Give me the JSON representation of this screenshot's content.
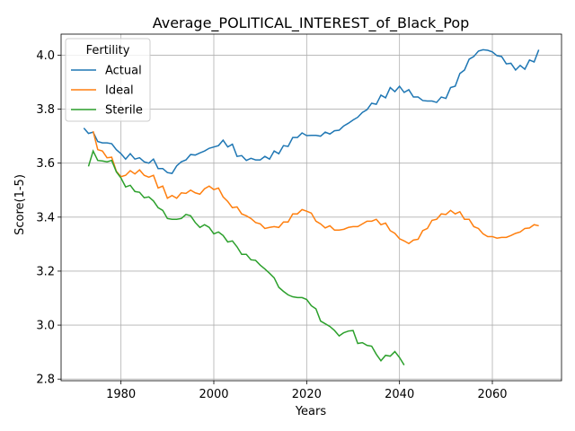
{
  "chart_data": {
    "type": "line",
    "title": "Average_POLITICAL_INTEREST_of_Black_Pop",
    "x_label": "Years",
    "y_label": "Score(1-5)",
    "legend_title": "Fertility",
    "legend": "upper left",
    "grid": true,
    "xlim": [
      1967.1,
      2074.9
    ],
    "xticks": [
      1980,
      2000,
      2020,
      2040,
      2060
    ],
    "ylim": [
      2.794,
      4.078
    ],
    "yticks": [
      2.8,
      {
        "value": 3.0,
        "label": "3.0"
      },
      3.2,
      3.4,
      3.6,
      3.8,
      {
        "value": 4.0,
        "label": "4.0"
      }
    ],
    "x": [
      1972,
      1973,
      1974,
      1975,
      1976,
      1977,
      1978,
      1979,
      1980,
      1981,
      1982,
      1983,
      1984,
      1985,
      1986,
      1987,
      1988,
      1989,
      1990,
      1991,
      1992,
      1993,
      1994,
      1995,
      1996,
      1997,
      1998,
      1999,
      2000,
      2001,
      2002,
      2003,
      2004,
      2005,
      2006,
      2007,
      2008,
      2009,
      2010,
      2011,
      2012,
      2013,
      2014,
      2015,
      2016,
      2017,
      2018,
      2019,
      2020,
      2021,
      2022,
      2023,
      2024,
      2025,
      2026,
      2027,
      2028,
      2029,
      2030,
      2031,
      2032,
      2033,
      2034,
      2035,
      2036,
      2037,
      2038,
      2039,
      2040,
      2041,
      2042,
      2043,
      2044,
      2045,
      2046,
      2047,
      2048,
      2049,
      2050,
      2051,
      2052,
      2053,
      2054,
      2055,
      2056,
      2057,
      2058,
      2059,
      2060,
      2061,
      2062,
      2063,
      2064,
      2065,
      2066,
      2067,
      2068,
      2069,
      2070
    ],
    "series": [
      {
        "name": "Actual",
        "color": "#1f77b4",
        "values": [
          3.73,
          3.71,
          3.715,
          3.68,
          3.675,
          3.675,
          3.672,
          3.65,
          3.635,
          3.615,
          3.635,
          3.615,
          3.62,
          3.605,
          3.6,
          3.615,
          3.58,
          3.58,
          3.565,
          3.562,
          3.59,
          3.605,
          3.612,
          3.632,
          3.63,
          3.638,
          3.645,
          3.655,
          3.66,
          3.665,
          3.685,
          3.66,
          3.67,
          3.625,
          3.628,
          3.61,
          3.618,
          3.612,
          3.612,
          3.625,
          3.615,
          3.645,
          3.635,
          3.665,
          3.662,
          3.695,
          3.695,
          3.712,
          3.702,
          3.703,
          3.703,
          3.7,
          3.715,
          3.708,
          3.72,
          3.722,
          3.738,
          3.748,
          3.76,
          3.77,
          3.788,
          3.798,
          3.822,
          3.818,
          3.852,
          3.842,
          3.88,
          3.865,
          3.885,
          3.862,
          3.872,
          3.845,
          3.845,
          3.832,
          3.83,
          3.83,
          3.825,
          3.845,
          3.84,
          3.88,
          3.885,
          3.932,
          3.945,
          3.985,
          3.995,
          4.015,
          4.02,
          4.018,
          4.012,
          3.998,
          3.995,
          3.968,
          3.97,
          3.945,
          3.962,
          3.948,
          3.982,
          3.975,
          4.02
        ]
      },
      {
        "name": "Ideal",
        "color": "#ff7f0e",
        "values": [
          null,
          null,
          3.718,
          3.65,
          3.645,
          3.62,
          3.622,
          3.57,
          3.55,
          3.555,
          3.572,
          3.56,
          3.575,
          3.555,
          3.548,
          3.555,
          3.508,
          3.515,
          3.47,
          3.48,
          3.47,
          3.49,
          3.488,
          3.5,
          3.49,
          3.485,
          3.505,
          3.515,
          3.502,
          3.508,
          3.475,
          3.458,
          3.435,
          3.438,
          3.412,
          3.405,
          3.395,
          3.38,
          3.375,
          3.358,
          3.362,
          3.365,
          3.362,
          3.382,
          3.382,
          3.412,
          3.412,
          3.428,
          3.422,
          3.415,
          3.385,
          3.375,
          3.36,
          3.368,
          3.352,
          3.352,
          3.355,
          3.362,
          3.365,
          3.365,
          3.375,
          3.385,
          3.385,
          3.392,
          3.372,
          3.378,
          3.35,
          3.34,
          3.32,
          3.312,
          3.302,
          3.315,
          3.318,
          3.35,
          3.358,
          3.388,
          3.392,
          3.412,
          3.41,
          3.425,
          3.412,
          3.42,
          3.392,
          3.392,
          3.365,
          3.358,
          3.338,
          3.328,
          3.328,
          3.322,
          3.325,
          3.325,
          3.332,
          3.34,
          3.345,
          3.358,
          3.36,
          3.372,
          3.368
        ]
      },
      {
        "name": "Sterile",
        "color": "#2ca02c",
        "values": [
          null,
          3.588,
          3.645,
          3.61,
          3.608,
          3.605,
          3.61,
          3.568,
          3.545,
          3.512,
          3.518,
          3.495,
          3.492,
          3.472,
          3.475,
          3.46,
          3.435,
          3.425,
          3.395,
          3.392,
          3.392,
          3.395,
          3.41,
          3.405,
          3.38,
          3.362,
          3.372,
          3.362,
          3.338,
          3.345,
          3.332,
          3.308,
          3.312,
          3.29,
          3.262,
          3.262,
          3.242,
          3.24,
          3.222,
          3.208,
          3.192,
          3.175,
          3.14,
          3.125,
          3.112,
          3.105,
          3.102,
          3.102,
          3.095,
          3.072,
          3.06,
          3.015,
          3.005,
          2.995,
          2.98,
          2.96,
          2.972,
          2.978,
          2.98,
          2.932,
          2.935,
          2.925,
          2.922,
          2.892,
          2.868,
          2.888,
          2.885,
          2.902,
          2.88,
          2.852,
          null,
          null,
          null,
          null,
          null,
          null,
          null,
          null,
          null,
          null,
          null,
          null,
          null,
          null,
          null,
          null,
          null,
          null,
          null,
          null,
          null,
          null,
          null,
          null,
          null,
          null,
          null,
          null,
          null
        ]
      }
    ]
  }
}
